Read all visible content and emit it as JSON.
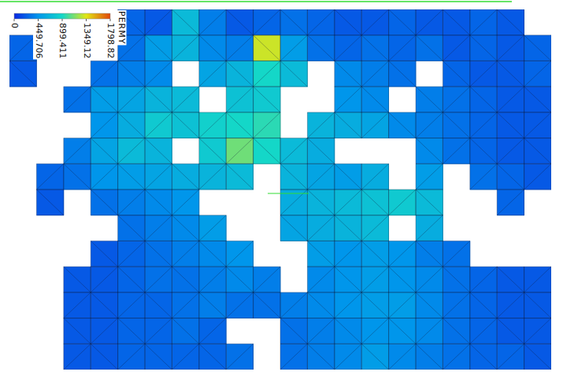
{
  "chart_data": {
    "type": "heatmap",
    "title": "PERMY",
    "tick_labels": false,
    "colorbar_range": [
      0,
      1798.82
    ],
    "colorbar_ticks": [
      0,
      449.706,
      899.411,
      1349.12,
      1798.82
    ],
    "cells": [
      [
        null,
        null,
        null,
        null,
        250,
        200,
        700,
        350,
        200,
        250,
        300,
        250,
        200,
        200,
        250,
        200,
        200,
        250,
        200,
        null
      ],
      [
        250,
        null,
        null,
        null,
        300,
        500,
        650,
        400,
        350,
        1300,
        500,
        300,
        250,
        300,
        250,
        300,
        200,
        250,
        200,
        250
      ],
      [
        200,
        null,
        null,
        300,
        350,
        400,
        null,
        550,
        650,
        900,
        700,
        null,
        400,
        350,
        300,
        null,
        250,
        200,
        200,
        250
      ],
      [
        null,
        null,
        300,
        500,
        550,
        650,
        700,
        null,
        750,
        800,
        null,
        null,
        450,
        400,
        null,
        350,
        300,
        250,
        200,
        200
      ],
      [
        null,
        null,
        null,
        450,
        600,
        800,
        750,
        850,
        900,
        950,
        null,
        650,
        600,
        550,
        400,
        350,
        300,
        250,
        200,
        200
      ],
      [
        null,
        null,
        350,
        550,
        700,
        650,
        null,
        800,
        1100,
        900,
        700,
        600,
        null,
        null,
        null,
        400,
        300,
        250,
        200,
        200
      ],
      [
        null,
        250,
        300,
        450,
        500,
        550,
        600,
        650,
        700,
        null,
        650,
        550,
        500,
        600,
        null,
        500,
        null,
        300,
        250,
        200
      ],
      [
        null,
        200,
        null,
        300,
        350,
        400,
        450,
        null,
        null,
        null,
        600,
        650,
        700,
        750,
        800,
        700,
        null,
        null,
        250,
        null
      ],
      [
        null,
        null,
        null,
        null,
        300,
        350,
        400,
        500,
        null,
        null,
        550,
        600,
        650,
        700,
        null,
        600,
        null,
        null,
        null,
        null
      ],
      [
        null,
        null,
        null,
        200,
        250,
        300,
        350,
        400,
        450,
        null,
        null,
        500,
        450,
        500,
        450,
        350,
        300,
        null,
        null,
        null
      ],
      [
        null,
        null,
        200,
        200,
        250,
        300,
        300,
        350,
        400,
        350,
        null,
        400,
        450,
        500,
        450,
        400,
        300,
        250,
        200,
        200
      ],
      [
        null,
        null,
        200,
        200,
        250,
        250,
        300,
        350,
        300,
        300,
        350,
        400,
        450,
        500,
        500,
        400,
        300,
        250,
        200,
        200
      ],
      [
        null,
        null,
        200,
        200,
        250,
        250,
        300,
        250,
        null,
        null,
        300,
        350,
        400,
        450,
        450,
        400,
        300,
        250,
        200,
        200
      ],
      [
        null,
        null,
        200,
        200,
        250,
        250,
        250,
        250,
        300,
        null,
        300,
        350,
        400,
        500,
        400,
        350,
        300,
        250,
        250,
        200
      ]
    ]
  }
}
